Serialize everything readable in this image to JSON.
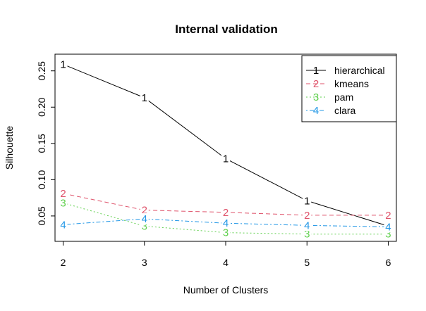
{
  "chart_data": {
    "type": "line",
    "title": "Internal validation",
    "xlabel": "Number of Clusters",
    "ylabel": "Silhouette",
    "x": [
      2,
      3,
      4,
      5,
      6
    ],
    "xticks": [
      "2",
      "3",
      "4",
      "5",
      "6"
    ],
    "yticks": [
      0.05,
      0.1,
      0.15,
      0.2,
      0.25
    ],
    "ytick_labels": [
      "0.05",
      "0.10",
      "0.15",
      "0.20",
      "0.25"
    ],
    "xlim": [
      1.9,
      6.1
    ],
    "ylim": [
      0.015,
      0.273
    ],
    "grid": false,
    "legend_position": "top-right",
    "series": [
      {
        "name": "hierarchical",
        "marker": "1",
        "color": "#000000",
        "dash": "solid",
        "values": [
          0.259,
          0.213,
          0.129,
          0.071,
          0.036
        ]
      },
      {
        "name": "kmeans",
        "marker": "2",
        "color": "#df536b",
        "dash": "dashed",
        "values": [
          0.081,
          0.058,
          0.055,
          0.051,
          0.051
        ]
      },
      {
        "name": "pam",
        "marker": "3",
        "color": "#61d04f",
        "dash": "dotted",
        "values": [
          0.068,
          0.036,
          0.027,
          0.025,
          0.025
        ]
      },
      {
        "name": "clara",
        "marker": "4",
        "color": "#2297e6",
        "dash": "dotdash",
        "values": [
          0.038,
          0.046,
          0.04,
          0.037,
          0.035
        ]
      }
    ]
  }
}
